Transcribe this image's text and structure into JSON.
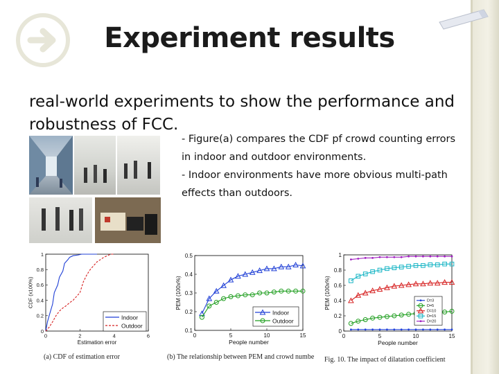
{
  "slide": {
    "title": "Experiment results",
    "lead": "real-world experiments to show the performance and robustness of FCC.",
    "bullets": [
      "- Figure(a) compares  the CDF pf crowd counting errors",
      "in indoor and outdoor environments.",
      "- Indoor environments have more obvious multi-path",
      "effects  than outdoors."
    ],
    "icons": {
      "logo": "arrow-right-circle-icon",
      "tag": "label-tag-icon"
    }
  },
  "chart_data": [
    {
      "type": "line",
      "xlabel": "Estimation error",
      "ylabel": "CDF (x100%)",
      "xlim": [
        0,
        6
      ],
      "ylim": [
        0,
        1
      ],
      "x_ticks": [
        "0",
        "2",
        "4",
        "6"
      ],
      "y_ticks": [
        "0",
        "0.2",
        "0.4",
        "0.6",
        "0.8",
        "1"
      ],
      "legend_position": "bottom-right",
      "caption": "(a) CDF of estimation error",
      "series": [
        {
          "name": "Indoor",
          "color": "#1f3fd6",
          "style": "solid",
          "x": [
            0,
            0.1,
            0.2,
            0.4,
            0.5,
            0.7,
            0.8,
            1.0,
            1.1,
            1.3,
            1.4,
            1.6,
            1.9,
            2.1,
            2.5,
            3.0
          ],
          "y": [
            0,
            0.12,
            0.2,
            0.35,
            0.5,
            0.6,
            0.7,
            0.78,
            0.88,
            0.93,
            0.96,
            0.98,
            0.99,
            1.0,
            1.0,
            1.0
          ]
        },
        {
          "name": "Outdoor",
          "color": "#d62020",
          "style": "dashed",
          "x": [
            0,
            0.2,
            0.4,
            0.6,
            0.8,
            1.0,
            1.2,
            1.4,
            1.6,
            1.8,
            2.0,
            2.2,
            2.4,
            2.6,
            2.8,
            3.0,
            3.2,
            3.4,
            3.6,
            3.8,
            4.0
          ],
          "y": [
            0,
            0.05,
            0.12,
            0.2,
            0.26,
            0.3,
            0.33,
            0.37,
            0.4,
            0.45,
            0.5,
            0.64,
            0.73,
            0.8,
            0.85,
            0.9,
            0.93,
            0.96,
            0.98,
            1.0,
            1.0
          ]
        }
      ]
    },
    {
      "type": "line",
      "xlabel": "People number",
      "ylabel": "PEM (100x%)",
      "xlim": [
        0,
        15
      ],
      "ylim": [
        0.1,
        0.5
      ],
      "x_ticks": [
        "0",
        "5",
        "10",
        "15"
      ],
      "y_ticks": [
        "0.1",
        "0.2",
        "0.3",
        "0.4",
        "0.5"
      ],
      "legend_position": "bottom-right",
      "caption": "(b) The relationship between PEM and crowd number",
      "series": [
        {
          "name": "Indoor",
          "color": "#1f3fd6",
          "marker": "triangle",
          "x": [
            1,
            2,
            3,
            4,
            5,
            6,
            7,
            8,
            9,
            10,
            11,
            12,
            13,
            14,
            15
          ],
          "y": [
            0.19,
            0.27,
            0.31,
            0.34,
            0.37,
            0.39,
            0.4,
            0.41,
            0.42,
            0.43,
            0.43,
            0.44,
            0.44,
            0.45,
            0.445
          ]
        },
        {
          "name": "Outdoor",
          "color": "#1f9e1f",
          "marker": "circle",
          "x": [
            1,
            2,
            3,
            4,
            5,
            6,
            7,
            8,
            9,
            10,
            11,
            12,
            13,
            14,
            15
          ],
          "y": [
            0.17,
            0.23,
            0.25,
            0.27,
            0.28,
            0.285,
            0.29,
            0.29,
            0.3,
            0.3,
            0.305,
            0.31,
            0.31,
            0.31,
            0.31
          ]
        }
      ]
    },
    {
      "type": "line",
      "xlabel": "People number",
      "ylabel": "PEM (100x%)",
      "xlim": [
        0,
        15
      ],
      "ylim": [
        0,
        1
      ],
      "x_ticks": [
        "0",
        "5",
        "10",
        "15"
      ],
      "y_ticks": [
        "0",
        "0.2",
        "0.4",
        "0.6",
        "0.8",
        "1"
      ],
      "legend_position": "bottom-right",
      "caption": "Fig. 10.   The impact of dilatation coefficient",
      "series": [
        {
          "name": "D=3",
          "color": "#1f3fd6",
          "marker": "point",
          "x": [
            1,
            2,
            3,
            4,
            5,
            6,
            7,
            8,
            9,
            10,
            11,
            12,
            13,
            14,
            15
          ],
          "y": [
            0.02,
            0.02,
            0.02,
            0.02,
            0.02,
            0.02,
            0.02,
            0.02,
            0.02,
            0.02,
            0.02,
            0.02,
            0.02,
            0.02,
            0.02
          ]
        },
        {
          "name": "D=5",
          "color": "#1f9e1f",
          "marker": "circle",
          "x": [
            1,
            2,
            3,
            4,
            5,
            6,
            7,
            8,
            9,
            10,
            11,
            12,
            13,
            14,
            15
          ],
          "y": [
            0.1,
            0.13,
            0.15,
            0.17,
            0.18,
            0.19,
            0.2,
            0.21,
            0.22,
            0.23,
            0.23,
            0.24,
            0.25,
            0.25,
            0.26
          ]
        },
        {
          "name": "D=10",
          "color": "#d62020",
          "marker": "triangle",
          "x": [
            1,
            2,
            3,
            4,
            5,
            6,
            7,
            8,
            9,
            10,
            11,
            12,
            13,
            14,
            15
          ],
          "y": [
            0.4,
            0.47,
            0.5,
            0.53,
            0.55,
            0.57,
            0.59,
            0.6,
            0.61,
            0.62,
            0.62,
            0.63,
            0.63,
            0.64,
            0.64
          ]
        },
        {
          "name": "D=15",
          "color": "#15b4c4",
          "marker": "square",
          "x": [
            1,
            2,
            3,
            4,
            5,
            6,
            7,
            8,
            9,
            10,
            11,
            12,
            13,
            14,
            15
          ],
          "y": [
            0.66,
            0.72,
            0.75,
            0.78,
            0.8,
            0.82,
            0.83,
            0.84,
            0.85,
            0.86,
            0.86,
            0.87,
            0.87,
            0.88,
            0.88
          ]
        },
        {
          "name": "D=20",
          "color": "#a020c0",
          "marker": "point",
          "x": [
            1,
            2,
            3,
            4,
            5,
            6,
            7,
            8,
            9,
            10,
            11,
            12,
            13,
            14,
            15
          ],
          "y": [
            0.94,
            0.95,
            0.96,
            0.96,
            0.97,
            0.97,
            0.97,
            0.97,
            0.98,
            0.98,
            0.98,
            0.98,
            0.98,
            0.98,
            0.98
          ]
        }
      ]
    }
  ]
}
